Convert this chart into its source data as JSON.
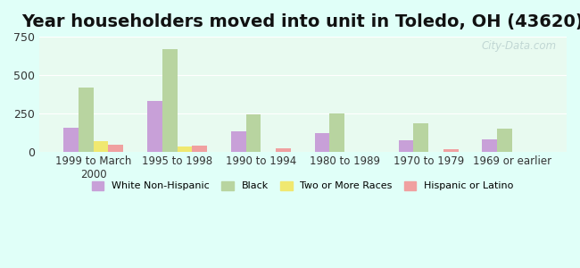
{
  "title": "Year householders moved into unit in Toledo, OH (43620)",
  "categories": [
    "1999 to March\n2000",
    "1995 to 1998",
    "1990 to 1994",
    "1980 to 1989",
    "1970 to 1979",
    "1969 or earlier"
  ],
  "series": {
    "White Non-Hispanic": [
      155,
      330,
      130,
      120,
      75,
      80
    ],
    "Black": [
      415,
      670,
      240,
      250,
      185,
      150
    ],
    "Two or More Races": [
      65,
      30,
      0,
      0,
      0,
      0
    ],
    "Hispanic or Latino": [
      45,
      40,
      20,
      0,
      15,
      0
    ]
  },
  "colors": {
    "White Non-Hispanic": "#c8a0d8",
    "Black": "#b8d4a0",
    "Two or More Races": "#f0e870",
    "Hispanic or Latino": "#f0a0a0"
  },
  "ylim": [
    0,
    750
  ],
  "yticks": [
    0,
    250,
    500,
    750
  ],
  "background_color": "#e0fff8",
  "plot_bg_color": "#e8faf0",
  "watermark": "City-Data.com",
  "bar_width": 0.18,
  "title_fontsize": 14
}
